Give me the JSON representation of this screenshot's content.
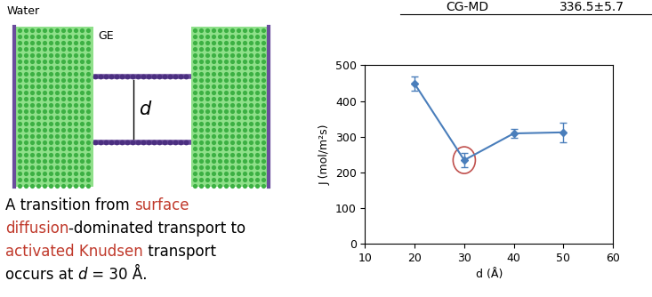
{
  "chart_data": {
    "type": "line",
    "x": [
      20,
      30,
      40,
      50
    ],
    "values": [
      448,
      234,
      309,
      312
    ],
    "errors": [
      20,
      20,
      12,
      27
    ],
    "color": "#4a7ebb",
    "marker": "diamond",
    "x_label": "d (Å)",
    "y_label": "J (mol/m²s)",
    "xlim": [
      10,
      60
    ],
    "xticks": [
      10,
      20,
      30,
      40,
      50,
      60
    ],
    "ylim": [
      0,
      500
    ],
    "yticks": [
      0,
      100,
      200,
      300,
      400,
      500
    ],
    "grid": false
  },
  "slide": {
    "table_row": [
      "CG-MD",
      "336.5±5.7"
    ],
    "image_labels": {
      "water": "Water",
      "sheet": "GE",
      "spacing": "d"
    },
    "caption": [
      [
        {
          "text": "A transition from ",
          "color": "black"
        },
        {
          "text": "surface",
          "color": "#c0392b"
        }
      ],
      [
        {
          "text": "diffusion",
          "color": "#c0392b"
        },
        {
          "text": "-dominated transport to",
          "color": "black"
        }
      ],
      [
        {
          "text": "activated Knudsen",
          "color": "#c0392b"
        },
        {
          "text": " transport",
          "color": "black"
        }
      ],
      [
        {
          "text": "occurs at ",
          "color": "black"
        },
        {
          "text": "d",
          "color": "black",
          "style": "italic"
        },
        {
          "text": " = 30 Å.",
          "color": "black"
        }
      ]
    ]
  }
}
